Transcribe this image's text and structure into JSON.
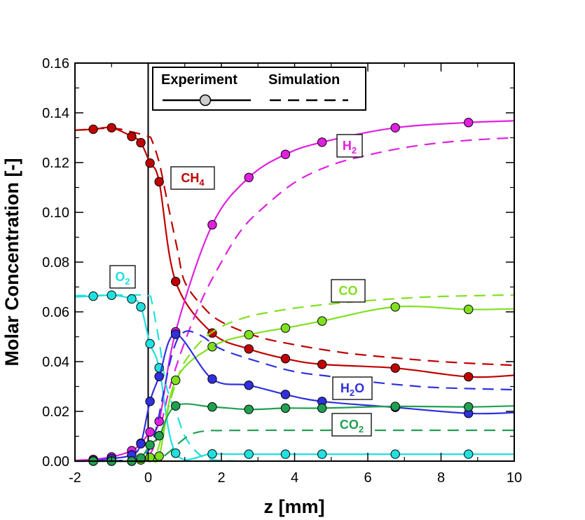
{
  "chart_data": {
    "type": "line",
    "xlabel": "z [mm]",
    "ylabel": "Molar Concentration  [-]",
    "xlim": [
      -2,
      10
    ],
    "ylim": [
      0,
      0.16
    ],
    "xticks": [
      -2,
      0,
      2,
      4,
      6,
      8,
      10
    ],
    "xtick_labels": [
      "-2",
      "0",
      "2",
      "4",
      "6",
      "8",
      "10"
    ],
    "yticks": [
      0,
      0.02,
      0.04,
      0.06,
      0.08,
      0.1,
      0.12,
      0.14,
      0.16
    ],
    "ytick_labels": [
      "0.00",
      "0.02",
      "0.04",
      "0.06",
      "0.08",
      "0.10",
      "0.12",
      "0.14",
      "0.16"
    ],
    "vertical_line_x": 0,
    "grid": false,
    "legend": {
      "position": "top",
      "entries": [
        {
          "label": "Experiment",
          "style": "solid line with circle marker"
        },
        {
          "label": "Simulation",
          "style": "dashed line"
        }
      ]
    },
    "series": [
      {
        "name": "CH4",
        "label_main": "CH",
        "label_sub": "4",
        "color": "#c00000",
        "experiment_x": [
          -1.5,
          -1.0,
          -0.45,
          -0.2,
          0.05,
          0.3,
          0.75,
          1.75,
          2.75,
          3.75,
          4.75,
          6.75,
          8.75
        ],
        "experiment_y": [
          0.1334,
          0.134,
          0.1305,
          0.128,
          0.1198,
          0.1123,
          0.0722,
          0.0515,
          0.0451,
          0.0412,
          0.0389,
          0.0374,
          0.0339
        ],
        "experiment_curve_x": [
          -2,
          -1.5,
          -1.0,
          -0.45,
          -0.2,
          0.05,
          0.3,
          0.75,
          1.75,
          2.75,
          3.75,
          4.75,
          6.75,
          8.75,
          10
        ],
        "experiment_curve_y": [
          0.133,
          0.1334,
          0.134,
          0.1305,
          0.128,
          0.1198,
          0.1123,
          0.0722,
          0.0515,
          0.0451,
          0.0412,
          0.0389,
          0.0374,
          0.0339,
          0.0345
        ],
        "simulation_x": [
          -2,
          -1.0,
          -0.5,
          0.0,
          0.1,
          0.3,
          0.5,
          0.8,
          1.0,
          1.5,
          2.0,
          3.0,
          4.0,
          5.0,
          6.0,
          8.0,
          10.0
        ],
        "simulation_y": [
          0.133,
          0.1338,
          0.1325,
          0.1305,
          0.129,
          0.12,
          0.106,
          0.085,
          0.072,
          0.062,
          0.056,
          0.05,
          0.0468,
          0.0443,
          0.0425,
          0.04,
          0.0385
        ]
      },
      {
        "name": "H2",
        "label_main": "H",
        "label_sub": "2",
        "color": "#e020e0",
        "experiment_x": [
          -1.5,
          -1.0,
          -0.45,
          -0.2,
          0.05,
          0.3,
          0.75,
          1.75,
          2.75,
          3.75,
          4.75,
          6.75,
          8.75
        ],
        "experiment_y": [
          0.0007,
          0.0017,
          0.0042,
          0.0072,
          0.0117,
          0.016,
          0.052,
          0.095,
          0.114,
          0.1233,
          0.1282,
          0.134,
          0.1361
        ],
        "experiment_curve_x": [
          -2,
          -1.5,
          -1.0,
          -0.45,
          -0.2,
          0.05,
          0.3,
          0.75,
          1.75,
          2.75,
          3.75,
          4.75,
          6.75,
          8.75,
          10
        ],
        "experiment_curve_y": [
          0.0003,
          0.0007,
          0.0017,
          0.0042,
          0.0072,
          0.0117,
          0.016,
          0.052,
          0.095,
          0.114,
          0.1233,
          0.1282,
          0.134,
          0.1361,
          0.1368
        ],
        "simulation_x": [
          -2,
          -0.5,
          0.0,
          0.3,
          0.6,
          1.0,
          1.5,
          2.0,
          2.5,
          3.0,
          4.0,
          5.0,
          6.0,
          7.0,
          8.0,
          9.0,
          10.0
        ],
        "simulation_y": [
          0.0,
          0.0003,
          0.002,
          0.012,
          0.03,
          0.048,
          0.066,
          0.08,
          0.092,
          0.1,
          0.112,
          0.119,
          0.123,
          0.126,
          0.128,
          0.1292,
          0.13
        ]
      },
      {
        "name": "O2",
        "label_main": "O",
        "label_sub": "2",
        "color": "#20e0e0",
        "experiment_x": [
          -1.5,
          -1.0,
          -0.45,
          -0.2,
          0.05,
          0.3,
          0.75,
          1.75,
          2.75,
          3.75,
          4.75,
          6.75,
          8.75
        ],
        "experiment_y": [
          0.0663,
          0.0667,
          0.0652,
          0.062,
          0.0472,
          0.0375,
          0.0032,
          0.0029,
          0.0028,
          0.0028,
          0.0028,
          0.0028,
          0.0028
        ],
        "experiment_curve_x": [
          -2,
          -1.5,
          -1.0,
          -0.45,
          -0.2,
          0.05,
          0.3,
          0.75,
          1.75,
          2.75,
          3.75,
          4.75,
          6.75,
          8.75,
          10
        ],
        "experiment_curve_y": [
          0.066,
          0.0663,
          0.0667,
          0.0652,
          0.062,
          0.0472,
          0.0375,
          0.0032,
          0.0029,
          0.0028,
          0.0028,
          0.0028,
          0.0028,
          0.0028,
          0.0028
        ],
        "simulation_x": [
          -2,
          -1.0,
          -0.5,
          0.0,
          0.1,
          0.3,
          0.5,
          0.8,
          1.0,
          1.3,
          1.6,
          2.0,
          2.5,
          3.0
        ],
        "simulation_y": [
          0.0665,
          0.0667,
          0.0668,
          0.0665,
          0.064,
          0.048,
          0.03,
          0.018,
          0.01,
          0.004,
          0.001,
          0.0003,
          0.0,
          0.0
        ]
      },
      {
        "name": "CO",
        "label_main": "CO",
        "label_sub": "",
        "color": "#80e020",
        "experiment_x": [
          -1.5,
          -1.0,
          -0.45,
          -0.2,
          0.05,
          0.3,
          0.75,
          1.75,
          2.75,
          3.75,
          4.75,
          6.75,
          8.75
        ],
        "experiment_y": [
          0.0,
          0.0,
          0.0,
          0.0005,
          0.0015,
          0.002,
          0.0325,
          0.046,
          0.0508,
          0.0535,
          0.0563,
          0.062,
          0.061
        ],
        "experiment_curve_x": [
          -1.5,
          -1.0,
          -0.45,
          -0.2,
          0.05,
          0.3,
          0.75,
          1.75,
          2.75,
          3.75,
          4.75,
          6.75,
          8.75,
          10
        ],
        "experiment_curve_y": [
          0.0,
          0.0,
          0.0,
          0.0005,
          0.0015,
          0.002,
          0.0325,
          0.046,
          0.0508,
          0.0535,
          0.0563,
          0.062,
          0.061,
          0.0612
        ],
        "simulation_x": [
          -2,
          0.0,
          0.2,
          0.4,
          0.6,
          0.8,
          1.0,
          1.5,
          2.0,
          2.5,
          3.0,
          4.0,
          5.0,
          6.0,
          7.0,
          8.0,
          10.0
        ],
        "simulation_y": [
          0.0,
          0.0,
          0.002,
          0.012,
          0.024,
          0.033,
          0.04,
          0.049,
          0.054,
          0.057,
          0.059,
          0.0615,
          0.0632,
          0.0645,
          0.0655,
          0.0662,
          0.0668
        ]
      },
      {
        "name": "H2O",
        "label_main": "H",
        "label_sub": "2",
        "label_tail": "O",
        "color": "#3030e0",
        "experiment_x": [
          -1.5,
          -1.0,
          -0.45,
          -0.2,
          0.05,
          0.3,
          0.75,
          1.75,
          2.75,
          3.75,
          4.75,
          6.75,
          8.75
        ],
        "experiment_y": [
          0.0002,
          0.001,
          0.0025,
          0.007,
          0.024,
          0.034,
          0.051,
          0.033,
          0.0305,
          0.0268,
          0.024,
          0.0216,
          0.0192
        ],
        "experiment_curve_x": [
          -1.5,
          -1.0,
          -0.45,
          -0.2,
          0.05,
          0.3,
          0.75,
          1.75,
          2.75,
          3.75,
          4.75,
          6.75,
          8.75,
          10
        ],
        "experiment_curve_y": [
          0.0002,
          0.001,
          0.0025,
          0.007,
          0.024,
          0.034,
          0.051,
          0.033,
          0.0305,
          0.0268,
          0.024,
          0.0216,
          0.0192,
          0.0195
        ],
        "simulation_x": [
          -2,
          -0.5,
          0.0,
          0.2,
          0.4,
          0.6,
          0.8,
          1.0,
          1.2,
          1.5,
          2.0,
          3.0,
          4.0,
          5.0,
          6.0,
          7.0,
          8.0,
          10.0
        ],
        "simulation_y": [
          0.0,
          0.0005,
          0.004,
          0.012,
          0.026,
          0.04,
          0.049,
          0.052,
          0.052,
          0.05,
          0.045,
          0.04,
          0.036,
          0.034,
          0.032,
          0.0305,
          0.0295,
          0.0287
        ]
      },
      {
        "name": "CO2",
        "label_main": "CO",
        "label_sub": "2",
        "color": "#20a050",
        "experiment_x": [
          -1.5,
          -1.0,
          -0.45,
          -0.2,
          0.05,
          0.3,
          0.75,
          1.75,
          2.75,
          3.75,
          4.75,
          6.75,
          8.75
        ],
        "experiment_y": [
          0.0,
          0.0,
          0.0,
          0.0012,
          0.0065,
          0.0102,
          0.0222,
          0.0218,
          0.0208,
          0.0213,
          0.0213,
          0.022,
          0.0218
        ],
        "experiment_curve_x": [
          -1.5,
          -1.0,
          -0.45,
          -0.2,
          0.05,
          0.3,
          0.75,
          1.75,
          2.75,
          3.75,
          4.75,
          6.75,
          8.75,
          10
        ],
        "experiment_curve_y": [
          0.0,
          0.0,
          0.0,
          0.0012,
          0.0065,
          0.0102,
          0.0222,
          0.0218,
          0.0208,
          0.0213,
          0.0213,
          0.022,
          0.0218,
          0.0222
        ],
        "simulation_x": [
          -2,
          0.0,
          0.3,
          0.6,
          0.9,
          1.2,
          1.6,
          2.0,
          3.0,
          4.0,
          6.0,
          8.0,
          10.0
        ],
        "simulation_y": [
          0.0,
          0.0,
          0.0008,
          0.004,
          0.008,
          0.011,
          0.0122,
          0.0123,
          0.0124,
          0.0124,
          0.0124,
          0.0124,
          0.0124
        ]
      }
    ]
  }
}
